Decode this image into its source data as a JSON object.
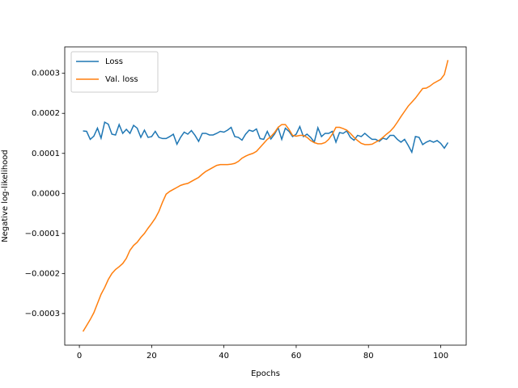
{
  "chart_data": {
    "type": "line",
    "xlabel": "Epochs",
    "ylabel": "Negative log-likelihood",
    "x": [
      1,
      2,
      3,
      4,
      5,
      6,
      7,
      8,
      9,
      10,
      11,
      12,
      13,
      14,
      15,
      16,
      17,
      18,
      19,
      20,
      21,
      22,
      23,
      24,
      25,
      26,
      27,
      28,
      29,
      30,
      31,
      32,
      33,
      34,
      35,
      36,
      37,
      38,
      39,
      40,
      41,
      42,
      43,
      44,
      45,
      46,
      47,
      48,
      49,
      50,
      51,
      52,
      53,
      54,
      55,
      56,
      57,
      58,
      59,
      60,
      61,
      62,
      63,
      64,
      65,
      66,
      67,
      68,
      69,
      70,
      71,
      72,
      73,
      74,
      75,
      76,
      77,
      78,
      79,
      80,
      81,
      82,
      83,
      84,
      85,
      86,
      87,
      88,
      89,
      90,
      91,
      92,
      93,
      94,
      95,
      96,
      97,
      98,
      99,
      100,
      101,
      102
    ],
    "series": [
      {
        "name": "Loss",
        "color": "#1f77b4",
        "values": [
          0.000156,
          0.000155,
          0.000135,
          0.000143,
          0.000163,
          0.000138,
          0.000178,
          0.000173,
          0.000148,
          0.000146,
          0.000172,
          0.00015,
          0.00016,
          0.00015,
          0.00017,
          0.000163,
          0.00014,
          0.000158,
          0.00014,
          0.000142,
          0.000155,
          0.00014,
          0.000137,
          0.000137,
          0.000142,
          0.000148,
          0.000123,
          0.00014,
          0.000153,
          0.000148,
          0.000157,
          0.000145,
          0.00013,
          0.00015,
          0.00015,
          0.000146,
          0.000146,
          0.00015,
          0.000155,
          0.000153,
          0.000158,
          0.000165,
          0.000142,
          0.00014,
          0.000133,
          0.000148,
          0.000158,
          0.000155,
          0.000161,
          0.000137,
          0.000135,
          0.000155,
          0.000136,
          0.000148,
          0.000164,
          0.000135,
          0.000163,
          0.000155,
          0.000142,
          0.000148,
          0.000167,
          0.000142,
          0.000148,
          0.00014,
          0.000128,
          0.000164,
          0.000142,
          0.00015,
          0.00015,
          0.000155,
          0.000128,
          0.000152,
          0.00015,
          0.000156,
          0.00014,
          0.000133,
          0.000145,
          0.000142,
          0.00015,
          0.000142,
          0.000135,
          0.000135,
          0.00013,
          0.000138,
          0.000135,
          0.000145,
          0.000145,
          0.000135,
          0.000128,
          0.000135,
          0.00012,
          0.000103,
          0.000142,
          0.00014,
          0.000122,
          0.000128,
          0.000132,
          0.000128,
          0.000132,
          0.000125,
          0.000113,
          0.000127
        ]
      },
      {
        "name": "Val. loss",
        "color": "#ff7f0e",
        "values": [
          -0.000345,
          -0.00033,
          -0.000315,
          -0.000298,
          -0.000275,
          -0.000252,
          -0.000235,
          -0.000215,
          -0.0002,
          -0.00019,
          -0.000183,
          -0.000175,
          -0.000162,
          -0.000142,
          -0.00013,
          -0.000122,
          -0.00011,
          -0.0001,
          -8.7e-05,
          -7.5e-05,
          -6.2e-05,
          -4.5e-05,
          -2.2e-05,
          -2e-06,
          5e-06,
          1e-05,
          1.5e-05,
          2e-05,
          2.3e-05,
          2.5e-05,
          3e-05,
          3.5e-05,
          4e-05,
          4.8e-05,
          5.5e-05,
          6e-05,
          6.5e-05,
          7e-05,
          7.2e-05,
          7.2e-05,
          7.2e-05,
          7.3e-05,
          7.5e-05,
          8e-05,
          8.8e-05,
          9.3e-05,
          9.7e-05,
          0.0001,
          0.000105,
          0.000115,
          0.000125,
          0.000135,
          0.000142,
          0.000152,
          0.000165,
          0.000172,
          0.000172,
          0.00016,
          0.000145,
          0.000143,
          0.000145,
          0.000145,
          0.00014,
          0.000132,
          0.000127,
          0.000124,
          0.000124,
          0.000127,
          0.000135,
          0.000148,
          0.000165,
          0.000165,
          0.000162,
          0.000158,
          0.00015,
          0.00014,
          0.000132,
          0.000125,
          0.000122,
          0.000122,
          0.000123,
          0.000128,
          0.000133,
          0.00014,
          0.000148,
          0.000155,
          0.000165,
          0.000178,
          0.000192,
          0.000205,
          0.000218,
          0.000228,
          0.000238,
          0.00025,
          0.000262,
          0.000263,
          0.000268,
          0.000275,
          0.00028,
          0.000285,
          0.000297,
          0.000333
        ]
      }
    ],
    "xlim": [
      -4.05,
      107.05
    ],
    "xticks": [
      0,
      20,
      40,
      60,
      80,
      100
    ],
    "ylim": [
      -0.000379,
      0.000366
    ],
    "yticks": [
      {
        "value": -0.0003,
        "label": "−0.0003"
      },
      {
        "value": -0.0002,
        "label": "−0.0002"
      },
      {
        "value": -0.0001,
        "label": "−0.0001"
      },
      {
        "value": 0,
        "label": "0.0000"
      },
      {
        "value": 0.0001,
        "label": "0.0001"
      },
      {
        "value": 0.0002,
        "label": "0.0002"
      },
      {
        "value": 0.0003,
        "label": "0.0003"
      }
    ],
    "legend": "upper left"
  }
}
